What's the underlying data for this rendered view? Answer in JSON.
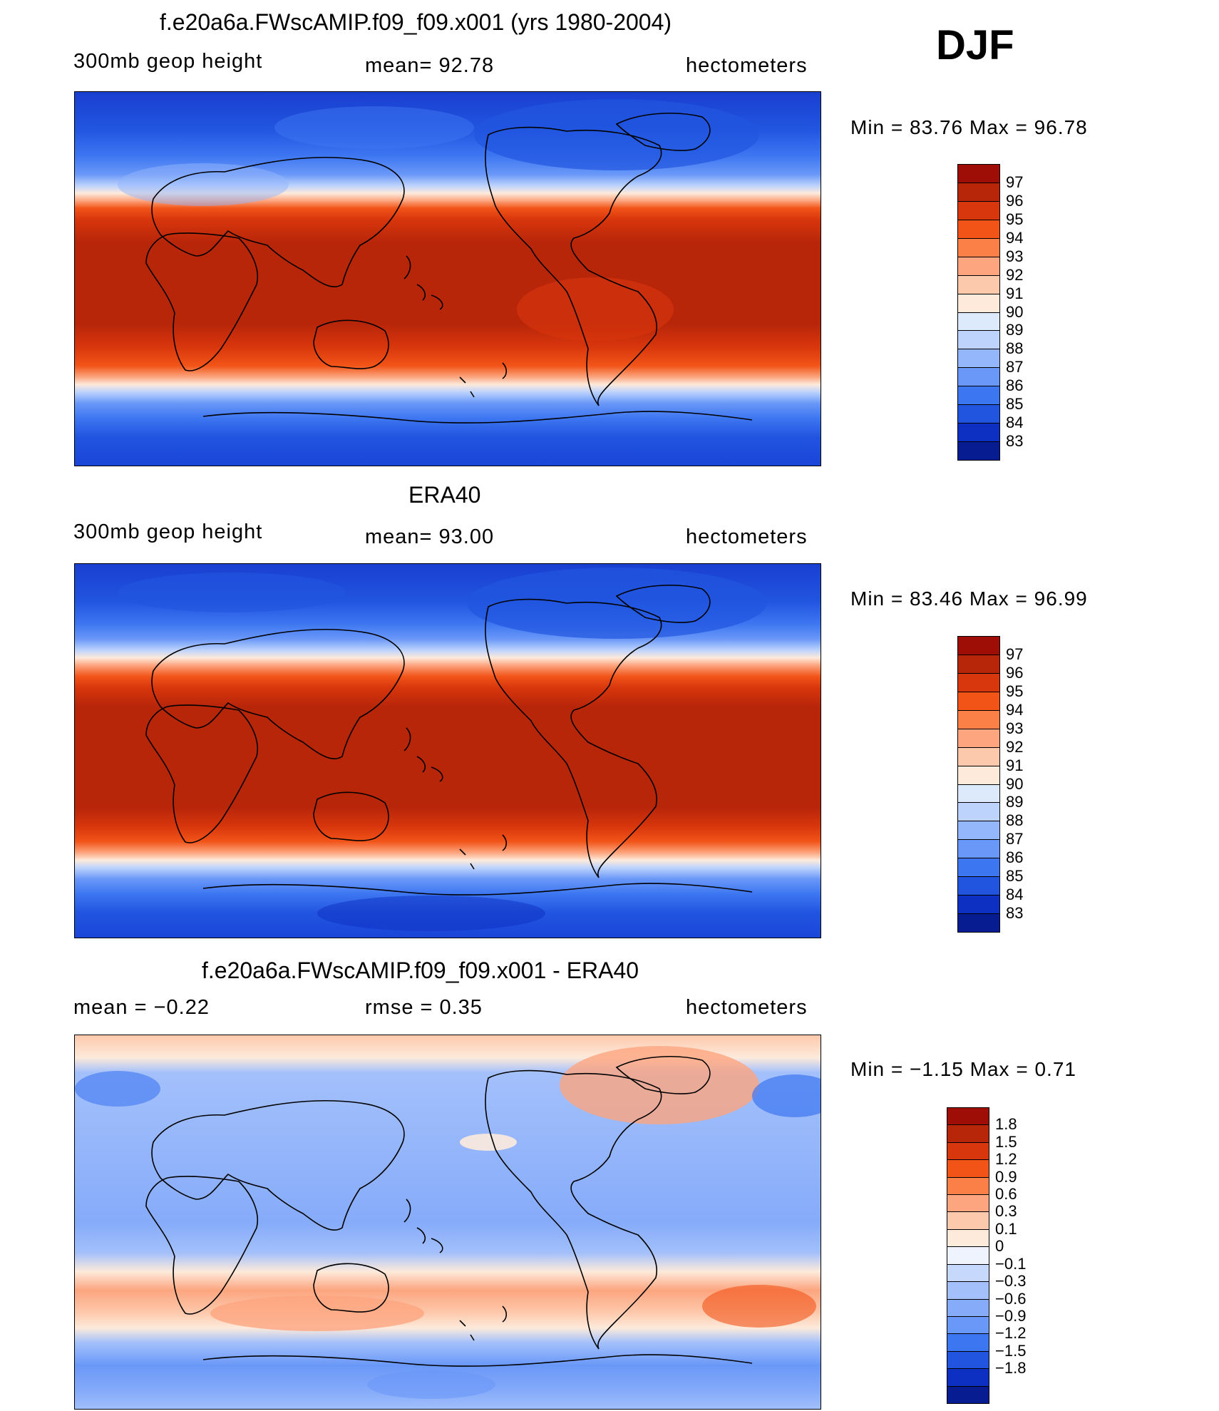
{
  "season": "DJF",
  "panels": [
    {
      "id": "model",
      "title": "f.e20a6a.FWscAMIP.f09_f09.x001 (yrs 1980-2004)",
      "left_label": "300mb  geop  height",
      "center_label": "mean=   92.78",
      "right_label": "hectometers",
      "minmax": "Min  =    83.76  Max  =    96.78",
      "colorbar_labels": [
        "97",
        "96",
        "95",
        "94",
        "93",
        "92",
        "91",
        "90",
        "89",
        "88",
        "87",
        "86",
        "85",
        "84",
        "83"
      ]
    },
    {
      "id": "obs",
      "title": "ERA40",
      "left_label": "300mb  geop  height",
      "center_label": "mean=   93.00",
      "right_label": "hectometers",
      "minmax": "Min  =    83.46  Max  =    96.99",
      "colorbar_labels": [
        "97",
        "96",
        "95",
        "94",
        "93",
        "92",
        "91",
        "90",
        "89",
        "88",
        "87",
        "86",
        "85",
        "84",
        "83"
      ]
    },
    {
      "id": "diff",
      "title": "f.e20a6a.FWscAMIP.f09_f09.x001 - ERA40",
      "left_label": "mean  =    −0.22",
      "center_label": "rmse  =     0.35",
      "right_label": "hectometers",
      "minmax": "Min  =    −1.15  Max  =      0.71",
      "colorbar_labels": [
        "1.8",
        "1.5",
        "1.2",
        "0.9",
        "0.6",
        "0.3",
        "0.1",
        "0",
        "−0.1",
        "−0.3",
        "−0.6",
        "−0.9",
        "−1.2",
        "−1.5",
        "−1.8"
      ]
    }
  ],
  "chart_data": [
    {
      "type": "heatmap",
      "title": "f.e20a6a.FWscAMIP.f09_f09.x001 (yrs 1980-2004)",
      "variable": "300mb geop height",
      "units": "hectometers",
      "mean": 92.78,
      "min": 83.76,
      "max": 96.78,
      "levels": [
        97,
        96,
        95,
        94,
        93,
        92,
        91,
        90,
        89,
        88,
        87,
        86,
        85,
        84,
        83
      ],
      "colors": [
        "#9e0e06",
        "#b8260a",
        "#d8360c",
        "#f25418",
        "#fb8048",
        "#fca57f",
        "#fdc9ac",
        "#fdeadb",
        "#dceafc",
        "#bdd3fc",
        "#94b6fb",
        "#6a98f8",
        "#3d76f1",
        "#2155e0",
        "#0d2fc2",
        "#061c90"
      ]
    },
    {
      "type": "heatmap",
      "title": "ERA40",
      "variable": "300mb geop height",
      "units": "hectometers",
      "mean": 93.0,
      "min": 83.46,
      "max": 96.99,
      "levels": [
        97,
        96,
        95,
        94,
        93,
        92,
        91,
        90,
        89,
        88,
        87,
        86,
        85,
        84,
        83
      ],
      "colors": [
        "#9e0e06",
        "#b8260a",
        "#d8360c",
        "#f25418",
        "#fb8048",
        "#fca57f",
        "#fdc9ac",
        "#fdeadb",
        "#dceafc",
        "#bdd3fc",
        "#94b6fb",
        "#6a98f8",
        "#3d76f1",
        "#2155e0",
        "#0d2fc2",
        "#061c90"
      ]
    },
    {
      "type": "heatmap",
      "title": "f.e20a6a.FWscAMIP.f09_f09.x001 - ERA40",
      "units": "hectometers",
      "mean": -0.22,
      "rmse": 0.35,
      "min": -1.15,
      "max": 0.71,
      "levels": [
        1.8,
        1.5,
        1.2,
        0.9,
        0.6,
        0.3,
        0.1,
        0,
        -0.1,
        -0.3,
        -0.6,
        -0.9,
        -1.2,
        -1.5,
        -1.8
      ],
      "colors": [
        "#9e0e06",
        "#b8260a",
        "#d8360c",
        "#f25418",
        "#fb8048",
        "#fca57f",
        "#fdc9ac",
        "#fdeadb",
        "#eef3fd",
        "#c6d8fc",
        "#a3c0fb",
        "#86abf9",
        "#6a98f8",
        "#3d76f1",
        "#2155e0",
        "#0d2fc2",
        "#061c90"
      ]
    }
  ]
}
